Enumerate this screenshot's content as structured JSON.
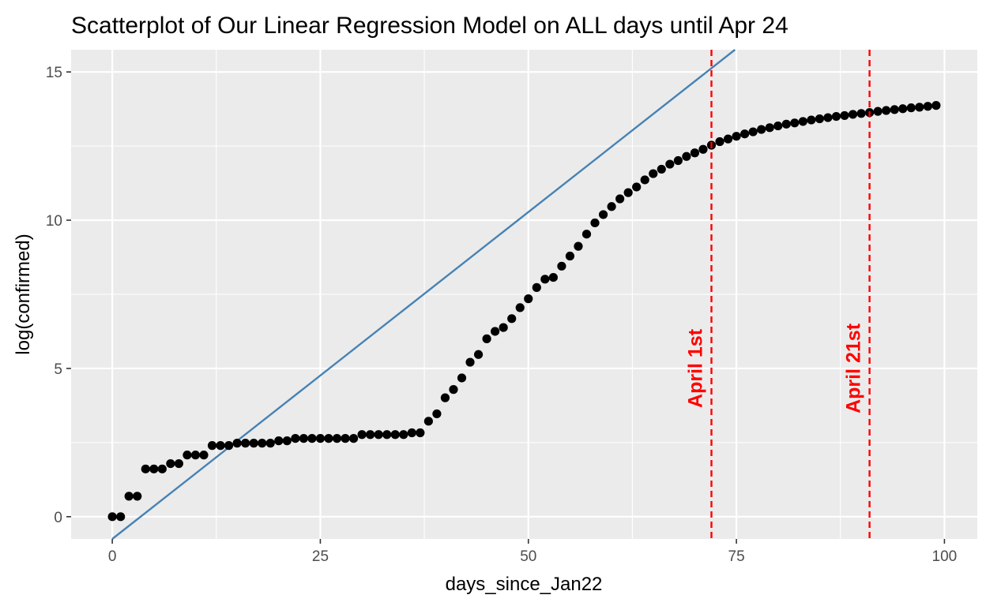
{
  "chart_data": {
    "type": "scatter",
    "title": "Scatterplot of Our Linear Regression Model on ALL days until Apr 24",
    "xlabel": "days_since_Jan22",
    "ylabel": "log(confirmed)",
    "xlim": [
      -4.95,
      103.95
    ],
    "ylim": [
      -0.75,
      15.75
    ],
    "x_ticks": [
      0,
      25,
      50,
      75,
      100
    ],
    "x_tick_labels": [
      "0",
      "25",
      "50",
      "75",
      "100"
    ],
    "y_ticks": [
      0,
      5,
      10,
      15
    ],
    "y_tick_labels": [
      "0",
      "5",
      "10",
      "15"
    ],
    "grid": true,
    "background": "#ebebeb",
    "grid_color": "#ffffff",
    "point_color": "#000000",
    "series": [
      {
        "points": [
          [
            0,
            0.0
          ],
          [
            1,
            0.0
          ],
          [
            2,
            0.69
          ],
          [
            3,
            0.69
          ],
          [
            4,
            1.61
          ],
          [
            5,
            1.61
          ],
          [
            6,
            1.61
          ],
          [
            7,
            1.79
          ],
          [
            8,
            1.79
          ],
          [
            9,
            2.08
          ],
          [
            10,
            2.08
          ],
          [
            11,
            2.08
          ],
          [
            12,
            2.4
          ],
          [
            13,
            2.4
          ],
          [
            14,
            2.4
          ],
          [
            15,
            2.48
          ],
          [
            16,
            2.48
          ],
          [
            17,
            2.48
          ],
          [
            18,
            2.48
          ],
          [
            19,
            2.48
          ],
          [
            20,
            2.56
          ],
          [
            21,
            2.56
          ],
          [
            22,
            2.64
          ],
          [
            23,
            2.64
          ],
          [
            24,
            2.64
          ],
          [
            25,
            2.64
          ],
          [
            26,
            2.64
          ],
          [
            27,
            2.64
          ],
          [
            28,
            2.64
          ],
          [
            29,
            2.64
          ],
          [
            30,
            2.77
          ],
          [
            31,
            2.77
          ],
          [
            32,
            2.77
          ],
          [
            33,
            2.77
          ],
          [
            34,
            2.77
          ],
          [
            35,
            2.77
          ],
          [
            36,
            2.83
          ],
          [
            37,
            2.83
          ],
          [
            38,
            3.22
          ],
          [
            39,
            3.47
          ],
          [
            40,
            4.01
          ],
          [
            41,
            4.29
          ],
          [
            42,
            4.68
          ],
          [
            43,
            5.21
          ],
          [
            44,
            5.47
          ],
          [
            45,
            6.0
          ],
          [
            46,
            6.25
          ],
          [
            47,
            6.38
          ],
          [
            48,
            6.68
          ],
          [
            49,
            7.05
          ],
          [
            50,
            7.35
          ],
          [
            51,
            7.73
          ],
          [
            52,
            8.01
          ],
          [
            53,
            8.07
          ],
          [
            54,
            8.45
          ],
          [
            55,
            8.79
          ],
          [
            56,
            9.12
          ],
          [
            57,
            9.53
          ],
          [
            58,
            9.91
          ],
          [
            59,
            10.19
          ],
          [
            60,
            10.46
          ],
          [
            61,
            10.72
          ],
          [
            62,
            10.93
          ],
          [
            63,
            11.12
          ],
          [
            64,
            11.36
          ],
          [
            65,
            11.57
          ],
          [
            66,
            11.72
          ],
          [
            67,
            11.89
          ],
          [
            68,
            12.01
          ],
          [
            69,
            12.15
          ],
          [
            70,
            12.27
          ],
          [
            71,
            12.39
          ],
          [
            72,
            12.53
          ],
          [
            73,
            12.65
          ],
          [
            74,
            12.74
          ],
          [
            75,
            12.83
          ],
          [
            76,
            12.91
          ],
          [
            77,
            12.98
          ],
          [
            78,
            13.06
          ],
          [
            79,
            13.12
          ],
          [
            80,
            13.18
          ],
          [
            81,
            13.24
          ],
          [
            82,
            13.28
          ],
          [
            83,
            13.33
          ],
          [
            84,
            13.38
          ],
          [
            85,
            13.42
          ],
          [
            86,
            13.46
          ],
          [
            87,
            13.5
          ],
          [
            88,
            13.53
          ],
          [
            89,
            13.57
          ],
          [
            90,
            13.6
          ],
          [
            91,
            13.63
          ],
          [
            92,
            13.67
          ],
          [
            93,
            13.7
          ],
          [
            94,
            13.73
          ],
          [
            95,
            13.76
          ],
          [
            96,
            13.79
          ],
          [
            97,
            13.81
          ],
          [
            98,
            13.84
          ],
          [
            99,
            13.87
          ]
        ]
      }
    ],
    "regression_line": {
      "color": "#4682b4",
      "intercept": -0.75,
      "slope": 0.2205
    },
    "vlines": [
      {
        "x": 72,
        "label": "April 1st",
        "color": "#ff0000",
        "label_y": 5
      },
      {
        "x": 91,
        "label": "April 21st",
        "color": "#ff0000",
        "label_y": 5
      }
    ]
  }
}
